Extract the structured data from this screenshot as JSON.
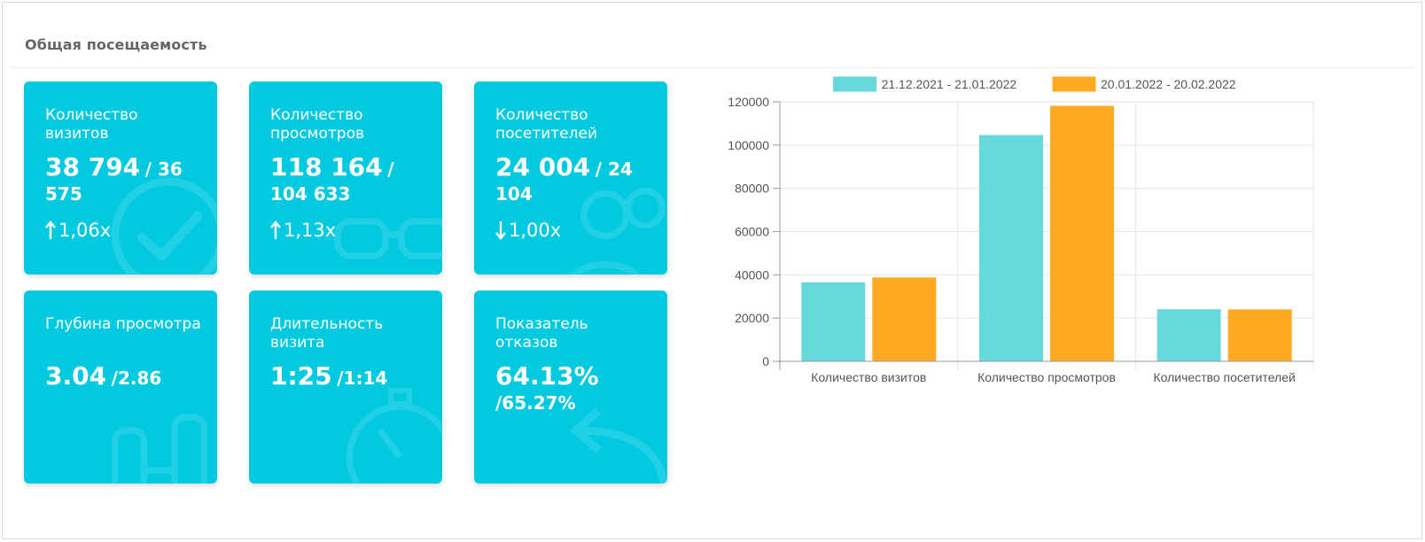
{
  "panel": {
    "title": "Общая посещаемость"
  },
  "cards": [
    {
      "label": "Количество визитов",
      "value": "38 794",
      "prev": "/ 36 575",
      "change": "1,06x",
      "direction": "up",
      "bg_icon": "check-clock-icon"
    },
    {
      "label": "Количество просмотров",
      "value": "118 164",
      "prev": "/ 104 633",
      "change": "1,13x",
      "direction": "up",
      "bg_icon": "glasses-icon"
    },
    {
      "label": "Количество посетителей",
      "value": "24 004",
      "prev": "/ 24 104",
      "change": "1,00x",
      "direction": "down",
      "bg_icon": "people-icon"
    },
    {
      "label": "Глубина просмотра",
      "value": "3.04",
      "prev": "/2.86",
      "change": "",
      "direction": "",
      "bg_icon": "bottles-icon"
    },
    {
      "label": "Длительность визита",
      "value": "1:25",
      "prev": "/1:14",
      "change": "",
      "direction": "",
      "bg_icon": "stopwatch-icon"
    },
    {
      "label": "Показатель отказов",
      "value": "64.13%",
      "prev": "/65.27%",
      "change": "",
      "direction": "",
      "bg_icon": "return-arrow-icon"
    }
  ],
  "colors": {
    "card_bg": "#00c9e0",
    "series1": "#66d9dc",
    "series2": "#ffaa22"
  },
  "chart_data": {
    "type": "bar",
    "categories": [
      "Количество визитов",
      "Количество просмотров",
      "Количество посетителей"
    ],
    "series": [
      {
        "name": "21.12.2021 - 21.01.2022",
        "values": [
          36575,
          104633,
          24104
        ],
        "color": "#66d9dc"
      },
      {
        "name": "20.01.2022 - 20.02.2022",
        "values": [
          38794,
          118164,
          24004
        ],
        "color": "#ffaa22"
      }
    ],
    "ylim": [
      0,
      120000
    ],
    "yticks": [
      0,
      20000,
      40000,
      60000,
      80000,
      100000,
      120000
    ],
    "grid": true,
    "legend": "top-center"
  }
}
